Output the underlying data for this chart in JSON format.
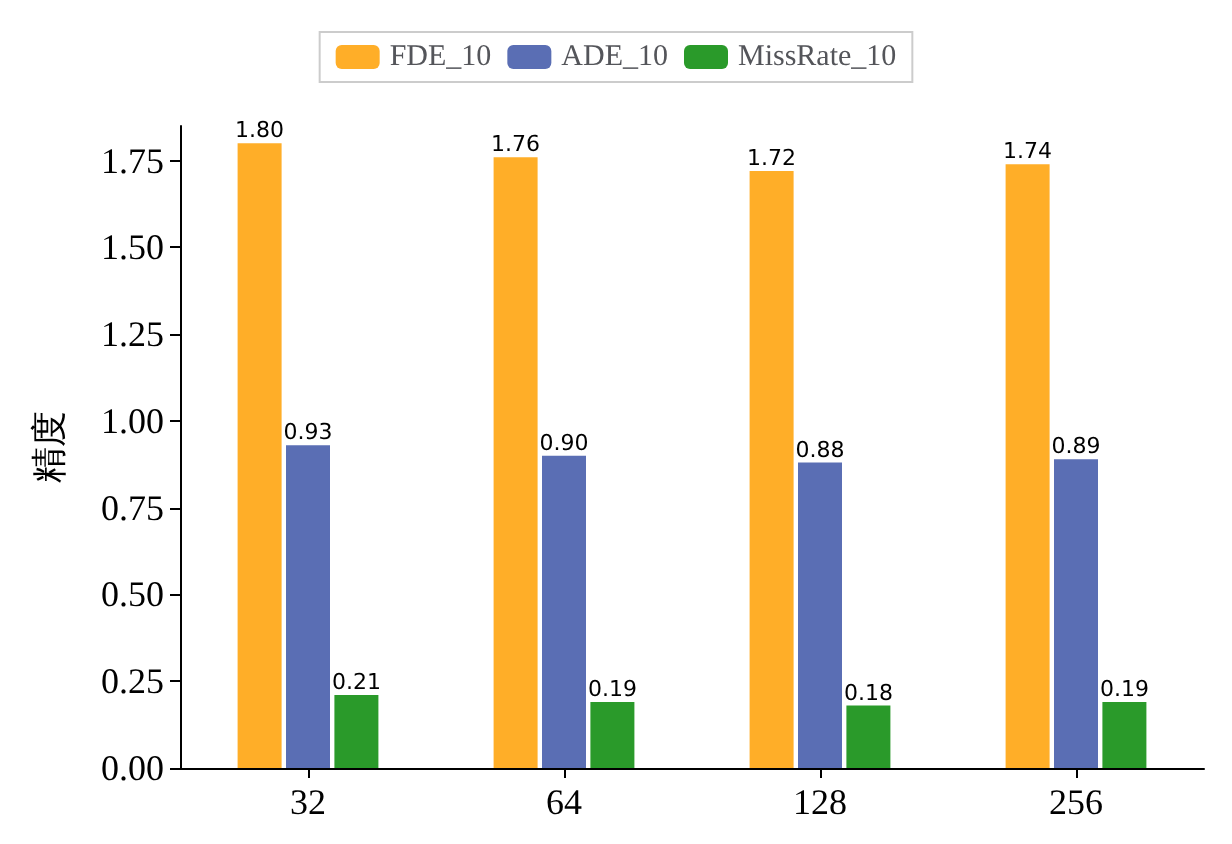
{
  "chart_data": {
    "type": "bar",
    "ylabel": "精度",
    "categories": [
      "32",
      "64",
      "128",
      "256"
    ],
    "series": [
      {
        "name": "FDE_10",
        "color": "#ffae28",
        "values": [
          1.8,
          1.76,
          1.72,
          1.74
        ],
        "value_labels": [
          "1.80",
          "1.76",
          "1.72",
          "1.74"
        ]
      },
      {
        "name": "ADE_10",
        "color": "#5a6eb4",
        "values": [
          0.93,
          0.9,
          0.88,
          0.89
        ],
        "value_labels": [
          "0.93",
          "0.90",
          "0.88",
          "0.89"
        ]
      },
      {
        "name": "MissRate_10",
        "color": "#2a9a2a",
        "values": [
          0.21,
          0.19,
          0.18,
          0.19
        ],
        "value_labels": [
          "0.21",
          "0.19",
          "0.18",
          "0.19"
        ]
      }
    ],
    "ylim": [
      0,
      1.85
    ],
    "yticks": [
      {
        "value": 0,
        "label": "0.00"
      },
      {
        "value": 0.25,
        "label": "0.25"
      },
      {
        "value": 0.5,
        "label": "0.50"
      },
      {
        "value": 0.75,
        "label": "0.75"
      },
      {
        "value": 1,
        "label": "1.00"
      },
      {
        "value": 1.25,
        "label": "1.25"
      },
      {
        "value": 1.5,
        "label": "1.50"
      },
      {
        "value": 1.75,
        "label": "1.75"
      }
    ],
    "grid": false,
    "legend": "top"
  }
}
